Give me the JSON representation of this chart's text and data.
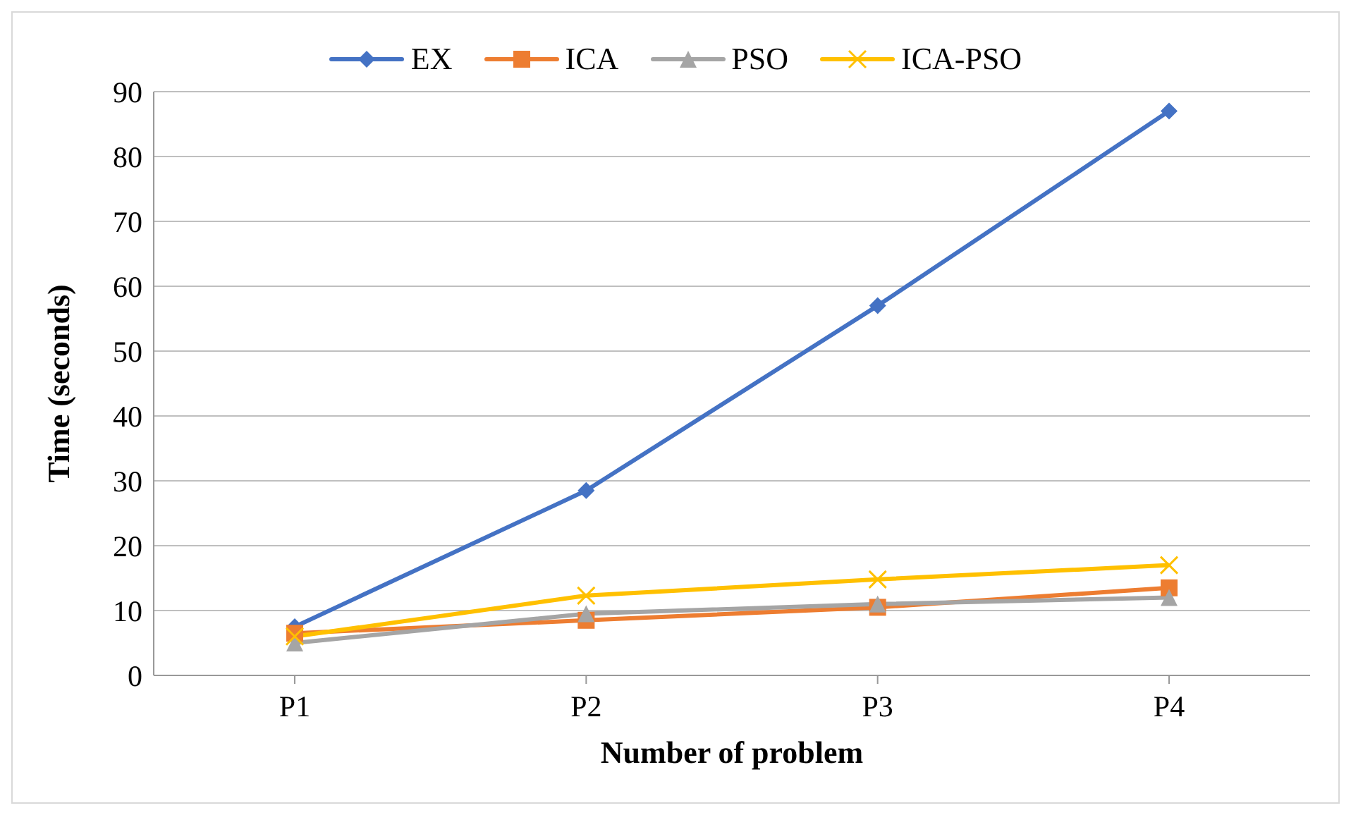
{
  "chart_data": {
    "type": "line",
    "xlabel": "Number of problem",
    "ylabel": "Time (seconds)",
    "categories": [
      "P1",
      "P2",
      "P3",
      "P4"
    ],
    "series": [
      {
        "name": "EX",
        "color": "#4472c4",
        "marker": "diamond",
        "values": [
          7.5,
          28.5,
          57,
          87
        ]
      },
      {
        "name": "ICA",
        "color": "#ed7d31",
        "marker": "square",
        "values": [
          6.5,
          8.5,
          10.5,
          13.5
        ]
      },
      {
        "name": "PSO",
        "color": "#a5a5a5",
        "marker": "triangle",
        "values": [
          5,
          9.5,
          11,
          12
        ]
      },
      {
        "name": "ICA-PSO",
        "color": "#ffc000",
        "marker": "cross",
        "values": [
          6,
          12.3,
          14.8,
          17
        ]
      }
    ],
    "ylim": [
      0,
      90
    ],
    "yticks": [
      0,
      10,
      20,
      30,
      40,
      50,
      60,
      70,
      80,
      90
    ],
    "grid": "y",
    "legend": "top"
  }
}
